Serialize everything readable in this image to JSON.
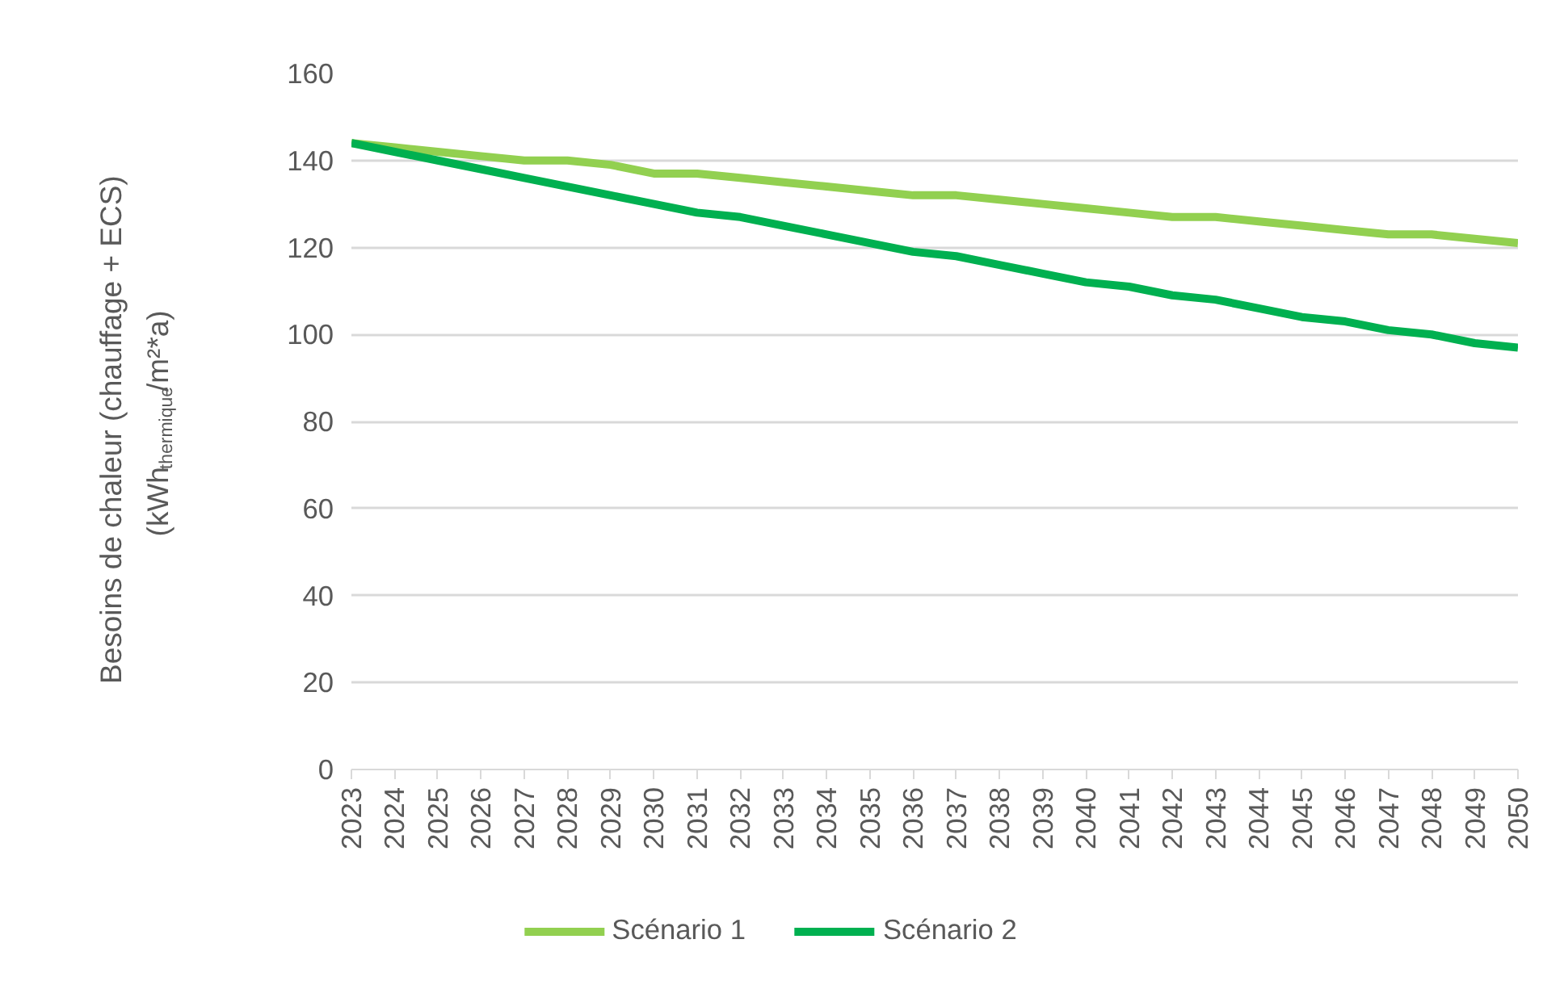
{
  "chart_data": {
    "type": "line",
    "ylabel": "Besoins de chaleur (chauffage + ECS)\n(kWh$_{thermique}$/m²*a)",
    "categories": [
      "2023",
      "2024",
      "2025",
      "2026",
      "2027",
      "2028",
      "2029",
      "2030",
      "2031",
      "2032",
      "2033",
      "2034",
      "2035",
      "2036",
      "2037",
      "2038",
      "2039",
      "2040",
      "2041",
      "2042",
      "2043",
      "2044",
      "2045",
      "2046",
      "2047",
      "2048",
      "2049",
      "2050"
    ],
    "series": [
      {
        "name": "Scénario 1",
        "color": "#92d050",
        "values": [
          144,
          143,
          142,
          141,
          140,
          140,
          139,
          137,
          137,
          136,
          135,
          134,
          133,
          132,
          132,
          131,
          130,
          129,
          128,
          127,
          127,
          126,
          125,
          124,
          123,
          123,
          122,
          121
        ]
      },
      {
        "name": "Scénario 2",
        "color": "#00b050",
        "values": [
          144,
          142,
          140,
          138,
          136,
          134,
          132,
          130,
          128,
          127,
          125,
          123,
          121,
          119,
          118,
          116,
          114,
          112,
          111,
          109,
          108,
          106,
          104,
          103,
          101,
          100,
          98,
          97
        ]
      }
    ],
    "ylim": [
      0,
      160
    ],
    "yticks": [
      0,
      20,
      40,
      60,
      80,
      100,
      120,
      140,
      160
    ],
    "grid": "y",
    "legend": "bottom",
    "marker": "none",
    "line_style": "solid"
  }
}
